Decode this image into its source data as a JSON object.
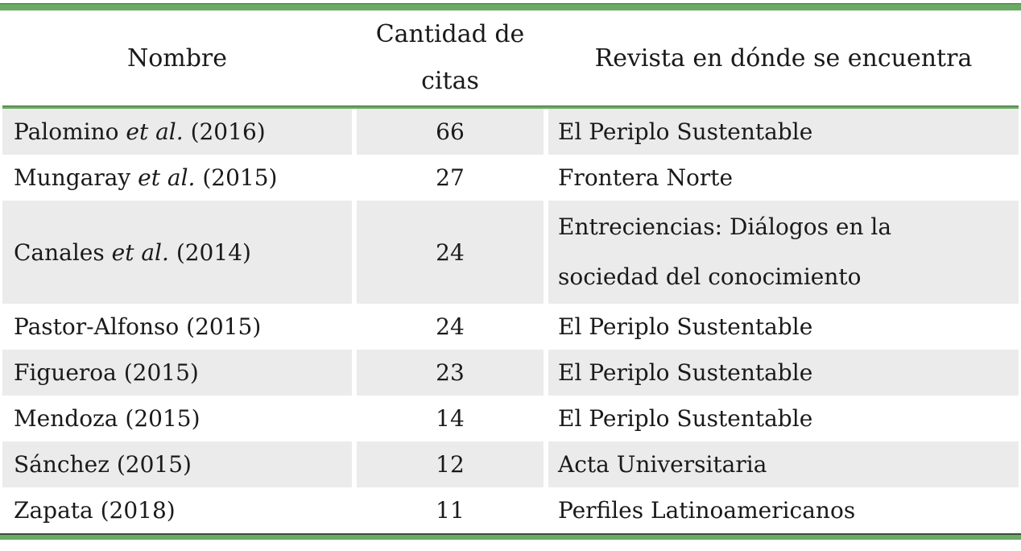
{
  "table": {
    "columns": [
      {
        "label": "Nombre"
      },
      {
        "label": "Cantidad de citas",
        "line1": "Cantidad de",
        "line2": "citas"
      },
      {
        "label": "Revista en dónde se encuentra"
      }
    ],
    "rows": [
      {
        "name_pre": "Palomino ",
        "name_italic": "et al.",
        "name_post": " (2016)",
        "citas": "66",
        "revista_lines": [
          "El Periplo Sustentable"
        ]
      },
      {
        "name_pre": "Mungaray ",
        "name_italic": "et al.",
        "name_post": " (2015)",
        "citas": "27",
        "revista_lines": [
          "Frontera Norte"
        ]
      },
      {
        "name_pre": "Canales ",
        "name_italic": "et al.",
        "name_post": " (2014)",
        "citas": "24",
        "revista_lines": [
          "Entreciencias: Diálogos en la",
          "sociedad del conocimiento"
        ]
      },
      {
        "name_pre": "Pastor-Alfonso (2015)",
        "name_italic": "",
        "name_post": "",
        "citas": "24",
        "revista_lines": [
          "El Periplo Sustentable"
        ]
      },
      {
        "name_pre": "Figueroa (2015)",
        "name_italic": "",
        "name_post": "",
        "citas": "23",
        "revista_lines": [
          "El Periplo Sustentable"
        ]
      },
      {
        "name_pre": "Mendoza (2015)",
        "name_italic": "",
        "name_post": "",
        "citas": "14",
        "revista_lines": [
          "El Periplo Sustentable"
        ]
      },
      {
        "name_pre": "Sánchez (2015)",
        "name_italic": "",
        "name_post": "",
        "citas": "12",
        "revista_lines": [
          "Acta Universitaria"
        ]
      },
      {
        "name_pre": "Zapata (2018)",
        "name_italic": "",
        "name_post": "",
        "citas": "11",
        "revista_lines": [
          "Perfiles Latinoamericanos"
        ]
      }
    ],
    "colors": {
      "accent_green": "#6aaa64",
      "stripe": "#ebebeb",
      "text": "#1a1a1a"
    }
  }
}
